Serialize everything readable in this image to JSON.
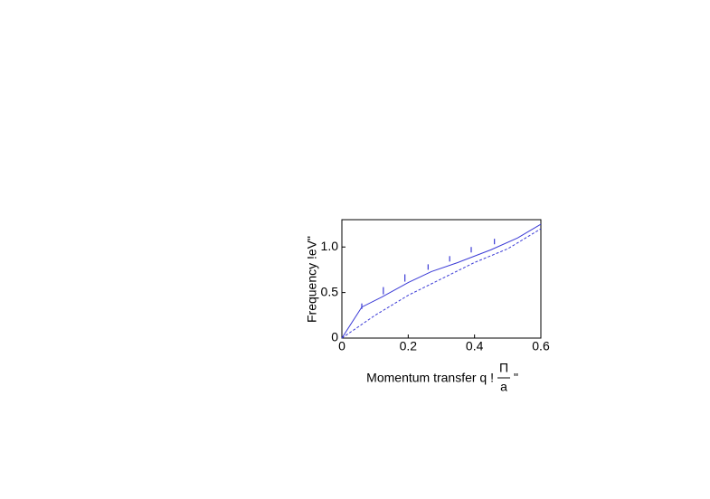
{
  "chart_data": {
    "type": "line",
    "xlabel": [
      "Momentum transfer q !",
      "Π",
      "a",
      "\""
    ],
    "ylabel": "Frequency !eV\"",
    "xlim": [
      0,
      0.6
    ],
    "ylim": [
      0,
      1.3
    ],
    "xticks": [
      0,
      0.2,
      0.4,
      0.6
    ],
    "yticks": [
      0,
      0.5,
      {
        "value": 1,
        "label": "1.0"
      }
    ],
    "series": [
      {
        "color": "#3a3ad6",
        "style": "solid",
        "x": [
          0,
          0.06,
          0.12,
          0.2,
          0.27,
          0.35,
          0.45,
          0.53,
          0.6
        ],
        "values": [
          0,
          0.34,
          0.45,
          0.61,
          0.73,
          0.83,
          0.97,
          1.1,
          1.25
        ]
      },
      {
        "color": "#3a3ad6",
        "style": "dashed",
        "x": [
          0,
          0.1,
          0.2,
          0.3,
          0.4,
          0.5,
          0.6
        ],
        "values": [
          0,
          0.25,
          0.47,
          0.65,
          0.83,
          0.98,
          1.2
        ]
      },
      {
        "color": "#3a3ad6",
        "style": "errorbar",
        "x": [
          0.06,
          0.125,
          0.19,
          0.26,
          0.325,
          0.39,
          0.46
        ],
        "values": [
          0.35,
          0.52,
          0.66,
          0.78,
          0.87,
          0.97,
          1.06
        ],
        "errors": [
          0.03,
          0.04,
          0.04,
          0.03,
          0.03,
          0.03,
          0.03
        ]
      }
    ]
  }
}
